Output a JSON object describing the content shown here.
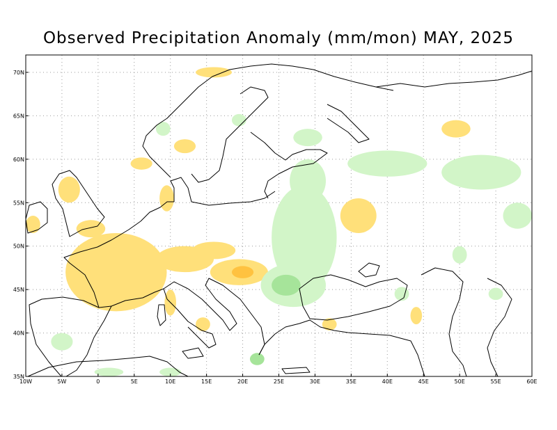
{
  "title": "Observed Precipitation Anomaly (mm/mon) MAY, 2025",
  "map": {
    "lon_range": [
      -10,
      60
    ],
    "lat_range": [
      35,
      72
    ],
    "lon_ticks": [
      {
        "value": -10,
        "label": "10W"
      },
      {
        "value": -5,
        "label": "5W"
      },
      {
        "value": 0,
        "label": "0"
      },
      {
        "value": 5,
        "label": "5E"
      },
      {
        "value": 10,
        "label": "10E"
      },
      {
        "value": 15,
        "label": "15E"
      },
      {
        "value": 20,
        "label": "20E"
      },
      {
        "value": 25,
        "label": "25E"
      },
      {
        "value": 30,
        "label": "30E"
      },
      {
        "value": 35,
        "label": "35E"
      },
      {
        "value": 40,
        "label": "40E"
      },
      {
        "value": 45,
        "label": "45E"
      },
      {
        "value": 50,
        "label": "50E"
      },
      {
        "value": 55,
        "label": "55E"
      },
      {
        "value": 60,
        "label": "60E"
      }
    ],
    "lat_ticks": [
      {
        "value": 35,
        "label": "35N"
      },
      {
        "value": 40,
        "label": "40N"
      },
      {
        "value": 45,
        "label": "45N"
      },
      {
        "value": 50,
        "label": "50N"
      },
      {
        "value": 55,
        "label": "55N"
      },
      {
        "value": 60,
        "label": "60N"
      },
      {
        "value": 65,
        "label": "65N"
      },
      {
        "value": 70,
        "label": "70N"
      }
    ],
    "grid": true,
    "colors": {
      "dry_light": "#ffe07a",
      "dry_strong": "#ffc240",
      "wet_light": "#d2f5c8",
      "wet_strong": "#a6e49a",
      "coastline": "#000000",
      "grid": "#9a9a9a"
    },
    "anomaly_regions": [
      {
        "kind": "dry_strong",
        "lon": 1.5,
        "lat": 46.5,
        "rlon": 4.0,
        "rlat": 3.5
      },
      {
        "kind": "dry_light",
        "lon": 2.5,
        "lat": 47.0,
        "rlon": 7.0,
        "rlat": 4.5
      },
      {
        "kind": "dry_light",
        "lon": 12.0,
        "lat": 48.5,
        "rlon": 4.0,
        "rlat": 1.5
      },
      {
        "kind": "dry_light",
        "lon": 19.5,
        "lat": 47.0,
        "rlon": 4.0,
        "rlat": 1.5
      },
      {
        "kind": "dry_strong",
        "lon": 20.0,
        "lat": 47.0,
        "rlon": 1.5,
        "rlat": 0.7
      },
      {
        "kind": "dry_light",
        "lon": 16.0,
        "lat": 49.5,
        "rlon": 3.0,
        "rlat": 1.0
      },
      {
        "kind": "dry_light",
        "lon": -4.0,
        "lat": 56.5,
        "rlon": 1.5,
        "rlat": 1.5
      },
      {
        "kind": "dry_light",
        "lon": -1.0,
        "lat": 52.0,
        "rlon": 2.0,
        "rlat": 1.0
      },
      {
        "kind": "dry_light",
        "lon": -9.0,
        "lat": 52.5,
        "rlon": 1.0,
        "rlat": 1.0
      },
      {
        "kind": "dry_light",
        "lon": 9.5,
        "lat": 55.5,
        "rlon": 1.0,
        "rlat": 1.5
      },
      {
        "kind": "dry_light",
        "lon": 36.0,
        "lat": 53.5,
        "rlon": 2.5,
        "rlat": 2.0
      },
      {
        "kind": "dry_light",
        "lon": 49.5,
        "lat": 63.5,
        "rlon": 2.0,
        "rlat": 1.0
      },
      {
        "kind": "dry_light",
        "lon": 12.0,
        "lat": 61.5,
        "rlon": 1.5,
        "rlat": 0.8
      },
      {
        "kind": "dry_light",
        "lon": 6.0,
        "lat": 59.5,
        "rlon": 1.5,
        "rlat": 0.7
      },
      {
        "kind": "dry_light",
        "lon": 10.0,
        "lat": 43.5,
        "rlon": 0.8,
        "rlat": 1.5
      },
      {
        "kind": "dry_light",
        "lon": 14.5,
        "lat": 41.0,
        "rlon": 1.0,
        "rlat": 0.8
      },
      {
        "kind": "dry_light",
        "lon": 32.0,
        "lat": 41.0,
        "rlon": 1.0,
        "rlat": 0.7
      },
      {
        "kind": "dry_light",
        "lon": 44.0,
        "lat": 42.0,
        "rlon": 0.8,
        "rlat": 1.0
      },
      {
        "kind": "dry_light",
        "lon": 16.0,
        "lat": 70.0,
        "rlon": 2.5,
        "rlat": 0.6
      },
      {
        "kind": "wet_light",
        "lon": 28.5,
        "lat": 51.0,
        "rlon": 4.5,
        "rlat": 6.0
      },
      {
        "kind": "wet_light",
        "lon": 27.0,
        "lat": 45.5,
        "rlon": 4.5,
        "rlat": 2.5
      },
      {
        "kind": "wet_strong",
        "lon": 26.0,
        "lat": 45.5,
        "rlon": 2.0,
        "rlat": 1.2
      },
      {
        "kind": "wet_light",
        "lon": 29.0,
        "lat": 57.5,
        "rlon": 2.5,
        "rlat": 2.5
      },
      {
        "kind": "wet_light",
        "lon": 40.0,
        "lat": 59.5,
        "rlon": 5.5,
        "rlat": 1.5
      },
      {
        "kind": "wet_light",
        "lon": 53.0,
        "lat": 58.5,
        "rlon": 5.5,
        "rlat": 2.0
      },
      {
        "kind": "wet_light",
        "lon": 58.0,
        "lat": 53.5,
        "rlon": 2.0,
        "rlat": 1.5
      },
      {
        "kind": "wet_light",
        "lon": 50.0,
        "lat": 49.0,
        "rlon": 1.0,
        "rlat": 1.0
      },
      {
        "kind": "wet_light",
        "lon": 29.0,
        "lat": 62.5,
        "rlon": 2.0,
        "rlat": 1.0
      },
      {
        "kind": "wet_light",
        "lon": 19.5,
        "lat": 64.5,
        "rlon": 1.0,
        "rlat": 0.7
      },
      {
        "kind": "wet_light",
        "lon": -5.0,
        "lat": 39.0,
        "rlon": 1.5,
        "rlat": 1.0
      },
      {
        "kind": "wet_light",
        "lon": 1.5,
        "lat": 35.5,
        "rlon": 2.0,
        "rlat": 0.5
      },
      {
        "kind": "wet_light",
        "lon": 10.0,
        "lat": 35.5,
        "rlon": 1.5,
        "rlat": 0.5
      },
      {
        "kind": "wet_strong",
        "lon": 22.0,
        "lat": 37.0,
        "rlon": 1.0,
        "rlat": 0.7
      },
      {
        "kind": "wet_light",
        "lon": 9.0,
        "lat": 63.5,
        "rlon": 1.0,
        "rlat": 0.8
      },
      {
        "kind": "wet_light",
        "lon": 42.0,
        "lat": 44.5,
        "rlon": 1.0,
        "rlat": 0.8
      },
      {
        "kind": "wet_light",
        "lon": 55.0,
        "lat": 44.5,
        "rlon": 1.0,
        "rlat": 0.7
      }
    ]
  }
}
